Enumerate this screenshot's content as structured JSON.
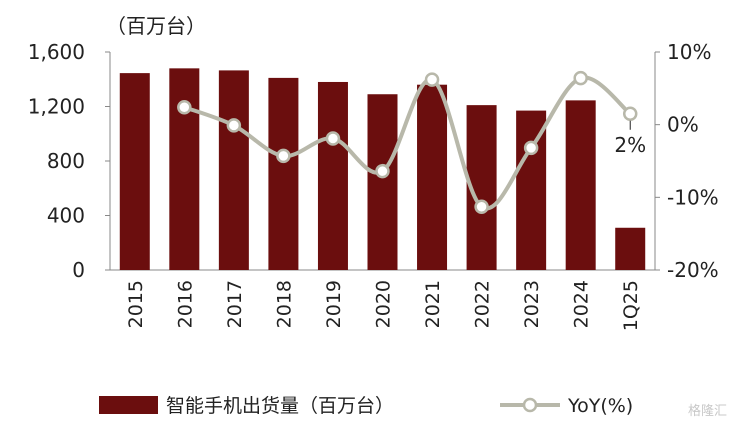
{
  "chart_data": {
    "type": "bar",
    "categories": [
      "2015",
      "2016",
      "2017",
      "2018",
      "2019",
      "2020",
      "2021",
      "2022",
      "2023",
      "2024",
      "1Q25"
    ],
    "y_unit_label": "（百万台）",
    "ylim": [
      0,
      1600
    ],
    "y_ticks": [
      "0",
      "400",
      "800",
      "1,200",
      "1,600"
    ],
    "y2lim": [
      -20,
      10
    ],
    "y2_ticks": [
      "-20%",
      "-10%",
      "0%",
      "10%"
    ],
    "series": [
      {
        "name": "智能手机出货量（百万台）",
        "type": "bar",
        "axis": "left",
        "color": "#6b0e0e",
        "values": [
          1445,
          1480,
          1465,
          1410,
          1380,
          1290,
          1360,
          1210,
          1170,
          1245,
          310
        ]
      },
      {
        "name": "YoY(%)",
        "type": "line",
        "axis": "right",
        "color": "#b8b8aa",
        "values": [
          null,
          2.4,
          -0.1,
          -4.3,
          -1.9,
          -6.4,
          6.2,
          -11.3,
          -3.2,
          6.4,
          1.5
        ]
      }
    ],
    "annotations": [
      {
        "series": "YoY(%)",
        "category": "1Q25",
        "text": "2%"
      }
    ],
    "grid": false,
    "legend_position": "bottom"
  },
  "watermark": "格隆汇"
}
